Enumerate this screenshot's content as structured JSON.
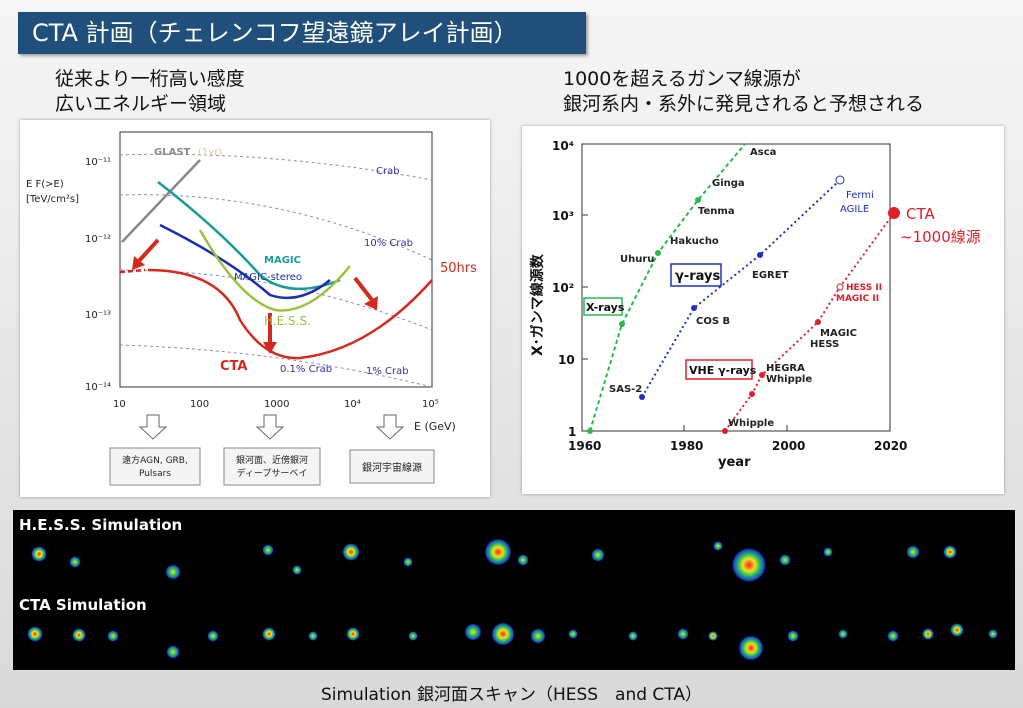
{
  "title": "CTA 計画（チェレンコフ望遠鏡アレイ計画）",
  "left_caption": {
    "line1": "従来より一桁高い感度",
    "line2": "広いエネルギー領域"
  },
  "right_caption": {
    "line1": "1000を超えるガンマ線源が",
    "line2": "銀河系内・系外に発見されると予想される"
  },
  "left_chart": {
    "ylabel_line1": "E F(>E)",
    "ylabel_line2": "[TeV/cm²s]",
    "y_ticks": [
      "10⁻¹¹",
      "10⁻¹²",
      "10⁻¹³",
      "10⁻¹⁴"
    ],
    "x_ticks": [
      "10",
      "100",
      "1000",
      "10⁴",
      "10⁵"
    ],
    "xlabel": "E (GeV)",
    "labels": {
      "glast": "GLAST",
      "glast_note": "(1yr)",
      "magic": "MAGIC",
      "magic_stereo": "MAGIC-stereo",
      "hess": "H.E.S.S.",
      "cta": "CTA",
      "crab": "Crab",
      "crab10": "10% Crab",
      "crab01": "0.1% Crab",
      "crab1": "1% Crab",
      "hrs": "50hrs"
    },
    "boxes": [
      "遠方AGN, GRB,\nPulsars",
      "銀河面、近傍銀河\nディープサーベイ",
      "銀河宇宙線源"
    ],
    "colors": {
      "glast": "#888888",
      "magic": "#1a9a9a",
      "magic_stereo": "#1a2fb0",
      "hess": "#9ac23c",
      "cta": "#d42a1e"
    }
  },
  "right_chart": {
    "ylabel": "X･ガンマ線源数",
    "xlabel": "year",
    "y_ticks": [
      "10⁴",
      "10³",
      "10²",
      "10",
      "1"
    ],
    "x_ticks": [
      "1960",
      "1980",
      "2000",
      "2020"
    ],
    "xray_points": [
      {
        "name": "Uhuru",
        "year": 1971,
        "n": 339
      },
      {
        "name": "Hakucho",
        "year": 1980,
        "n": 200
      },
      {
        "name": "Tenma",
        "year": 1983,
        "n": 150
      },
      {
        "name": "Ginga",
        "year": 1988,
        "n": 800
      },
      {
        "name": "Asca",
        "year": 1994,
        "n": 9000
      }
    ],
    "gamma_points": [
      {
        "name": "SAS-2",
        "year": 1972,
        "n": 3
      },
      {
        "name": "COS B",
        "year": 1980,
        "n": 50
      },
      {
        "name": "EGRET",
        "year": 1995,
        "n": 271
      },
      {
        "name": "Fermi AGILE",
        "year": 2010,
        "n": 3000
      }
    ],
    "vhe_points": [
      {
        "name": "Whipple",
        "year": 1989,
        "n": 1
      },
      {
        "name": "HEGRA Whipple",
        "year": 1996,
        "n": 6
      },
      {
        "name": "MAGIC HESS",
        "year": 2006,
        "n": 30
      },
      {
        "name": "HESS II MAGIC II",
        "year": 2012,
        "n": 100
      },
      {
        "name": "CTA",
        "year": 2020,
        "n": 1000
      }
    ],
    "tags": {
      "xrays": "X-rays",
      "grays": "γ-rays",
      "vhe": "VHE γ-rays"
    },
    "cta_label_1": "CTA",
    "cta_label_2": "~1000線源",
    "labels": {
      "asca": "Asca",
      "ginga": "Ginga",
      "tenma": "Tenma",
      "hakucho": "Hakucho",
      "uhuru": "Uhuru",
      "sas2": "SAS-2",
      "cosb": "COS B",
      "egret": "EGRET",
      "fermi": "Fermi",
      "agile": "AGILE",
      "whipple": "Whipple",
      "hegra": "HEGRA",
      "whipple2": "Whipple",
      "magic": "MAGIC",
      "hess": "HESS",
      "hess2": "HESS II",
      "magic2": "MAGIC II"
    }
  },
  "sim": {
    "label_hess": "H.E.S.S. Simulation",
    "label_cta": "CTA Simulation"
  },
  "bottom_caption": "Simulation 銀河面スキャン（HESS　and CTA）"
}
